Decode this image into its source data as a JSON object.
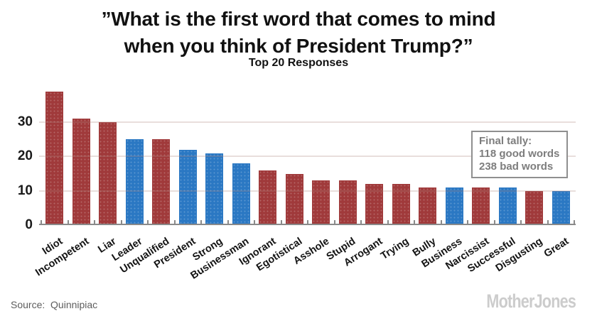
{
  "chart_data": {
    "type": "bar",
    "title": "”What is the first word that comes to mind when you think of President Trump?”",
    "title_lines": [
      "”What is the first word that comes to mind",
      "when you think of President Trump?”"
    ],
    "subtitle": "Top 20 Responses",
    "categories": [
      "Idiot",
      "Incompetent",
      "Liar",
      "Leader",
      "Unqualified",
      "President",
      "Strong",
      "Businessman",
      "Ignorant",
      "Egotistical",
      "Asshole",
      "Stupid",
      "Arrogant",
      "Trying",
      "Bully",
      "Business",
      "Narcissist",
      "Successful",
      "Disgusting",
      "Great"
    ],
    "values": [
      39,
      31,
      30,
      25,
      25,
      22,
      21,
      18,
      16,
      15,
      13,
      13,
      12,
      12,
      11,
      11,
      11,
      11,
      10,
      10
    ],
    "sentiments": [
      "bad",
      "bad",
      "bad",
      "good",
      "bad",
      "good",
      "good",
      "good",
      "bad",
      "bad",
      "bad",
      "bad",
      "bad",
      "bad",
      "bad",
      "good",
      "bad",
      "good",
      "bad",
      "good"
    ],
    "colors": {
      "good_blue": "#2b78c3",
      "bad_red": "#a03a3b"
    },
    "xlabel": "",
    "ylabel": "",
    "ylim": [
      0,
      40
    ],
    "yticks": [
      0,
      10,
      20,
      30
    ],
    "grid": true,
    "legend_position": "none",
    "annotation": {
      "lines": [
        "Final tally:",
        "118 good words",
        "238 bad words"
      ]
    },
    "source": "Source:  Quinnipiac",
    "branding": "MotherJones"
  }
}
